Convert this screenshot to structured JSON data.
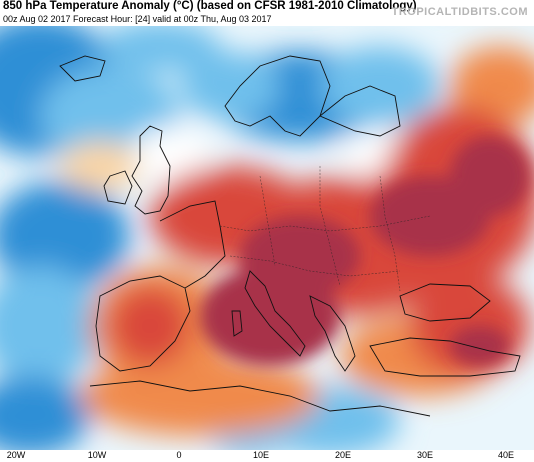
{
  "header": {
    "title": "850 hPa Temperature Anomaly (°C) (based on CFSR 1981-2010 Climatology)",
    "subtitle": "00z Aug 02 2017   Forecast Hour: [24]   valid at 00z Thu, Aug 03 2017",
    "logo": "TROPICALTIDBITS.COM"
  },
  "map": {
    "variable": "850 hPa temperature anomaly",
    "region": "Europe",
    "colors": {
      "strong_warm": "#a8324a",
      "warm": "#d9473a",
      "mild_warm": "#f08a4b",
      "slight_warm": "#fbd6a5",
      "neutral": "#ffffff",
      "slight_cool": "#bfe4f5",
      "cool": "#6fc0ec",
      "strong_cool": "#2f8fd6",
      "land_outline": "#111111"
    }
  },
  "axis": {
    "ticks": [
      "20W",
      "10W",
      "0",
      "10E",
      "20E",
      "30E",
      "40E"
    ]
  }
}
